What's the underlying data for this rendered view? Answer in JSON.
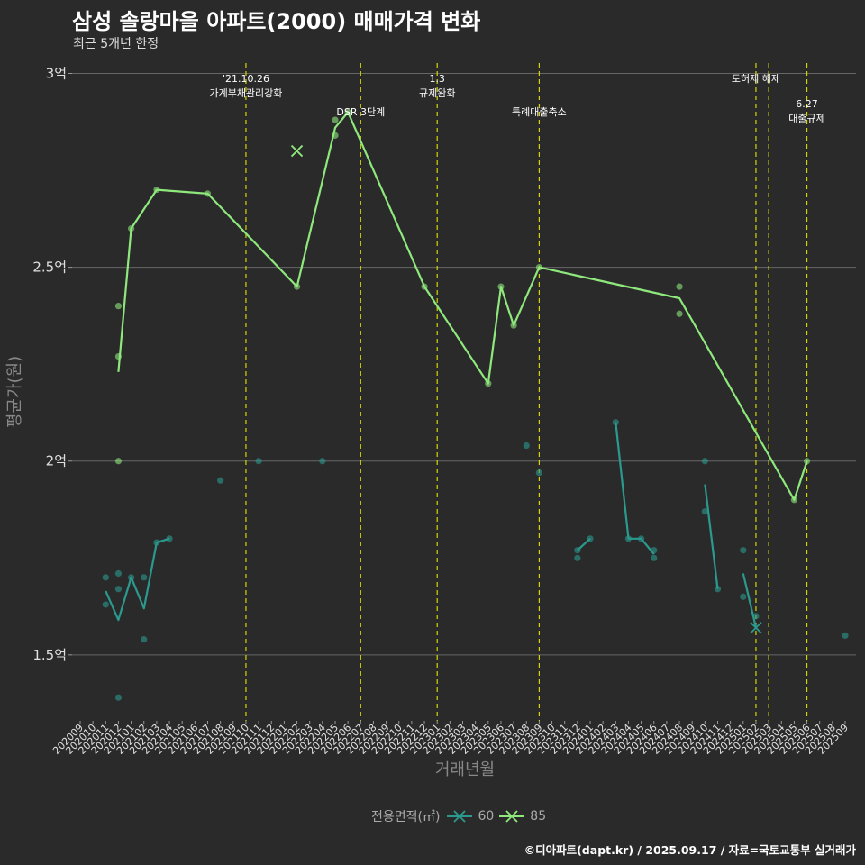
{
  "chart_data": {
    "type": "line",
    "title": "삼성 솔랑마을 아파트(2000) 매매가격 변화",
    "subtitle": "최근 5개년 한정",
    "xlabel": "거래년월",
    "ylabel": "평균가(원)",
    "caption": "©디아파트(dapt.kr) / 2025.09.17 / 자료=국토교통부 실거래가",
    "legend_title": "전용면적(㎡)",
    "legend_position": "bottom",
    "colors": {
      "60": "#2a9a8e",
      "85": "#8ee87c",
      "vline": "#d4d400",
      "grid": "#666666",
      "background": "#2b2a2b"
    },
    "ylim": [
      1.33,
      3.05
    ],
    "yticks": [
      {
        "value": 1.5,
        "label": "1.5억"
      },
      {
        "value": 2.0,
        "label": "2억"
      },
      {
        "value": 2.5,
        "label": "2.5억"
      },
      {
        "value": 3.0,
        "label": "3억"
      }
    ],
    "x_months": [
      "202009",
      "202010",
      "202011",
      "202012",
      "202101",
      "202102",
      "202103",
      "202104",
      "202105",
      "202106",
      "202107",
      "202108",
      "202109",
      "202110",
      "202111",
      "202112",
      "202201",
      "202202",
      "202203",
      "202204",
      "202205",
      "202206",
      "202207",
      "202208",
      "202209",
      "202210",
      "202211",
      "202212",
      "202301",
      "202302",
      "202303",
      "202304",
      "202305",
      "202306",
      "202307",
      "202308",
      "202309",
      "202310",
      "202311",
      "202312",
      "202401",
      "202402",
      "202403",
      "202404",
      "202405",
      "202406",
      "202407",
      "202408",
      "202409",
      "202410",
      "202411",
      "202412",
      "202501",
      "202502",
      "202503",
      "202504",
      "202505",
      "202506",
      "202507",
      "202508",
      "202509"
    ],
    "events": [
      {
        "x": "202110",
        "labels": [
          "'21.10.26",
          "가계부채관리강화"
        ],
        "level": 0
      },
      {
        "x": "202207",
        "labels": [
          "DSR 3단계"
        ],
        "level": 1
      },
      {
        "x": "202301",
        "labels": [
          "1.3",
          "규제완화"
        ],
        "level": 0
      },
      {
        "x": "202309",
        "labels": [
          "특례대출축소"
        ],
        "level": 1
      },
      {
        "x": "202502",
        "labels": [
          "토허제 해제"
        ],
        "level": 0
      },
      {
        "x": "202503",
        "labels": [],
        "level": 0
      },
      {
        "x": "202506",
        "labels": [
          "6.27",
          "대출규제"
        ],
        "level": 2
      }
    ],
    "series": [
      {
        "name": "60",
        "line_segments": [
          [
            [
              "202011",
              1.665
            ],
            [
              "202012",
              1.59
            ],
            [
              "202101",
              1.7
            ],
            [
              "202102",
              1.62
            ],
            [
              "202103",
              1.79
            ],
            [
              "202104",
              1.8
            ]
          ],
          [
            [
              "202312",
              1.77
            ],
            [
              "202401",
              1.8
            ]
          ],
          [
            [
              "202403",
              2.1
            ],
            [
              "202404",
              1.8
            ],
            [
              "202405",
              1.8
            ],
            [
              "202406",
              1.76
            ]
          ],
          [
            [
              "202410",
              1.94
            ],
            [
              "202411",
              1.67
            ]
          ],
          [
            [
              "202501",
              1.71
            ],
            [
              "202502",
              1.57
            ]
          ]
        ],
        "points": [
          [
            "202011",
            1.7
          ],
          [
            "202011",
            1.63
          ],
          [
            "202012",
            1.71
          ],
          [
            "202012",
            1.67
          ],
          [
            "202012",
            1.39
          ],
          [
            "202101",
            1.7
          ],
          [
            "202102",
            1.7
          ],
          [
            "202102",
            1.54
          ],
          [
            "202103",
            1.79
          ],
          [
            "202104",
            1.8
          ],
          [
            "202108",
            1.95
          ],
          [
            "202111",
            2.0
          ],
          [
            "202204",
            2.0
          ],
          [
            "202308",
            2.04
          ],
          [
            "202309",
            1.97
          ],
          [
            "202312",
            1.75
          ],
          [
            "202312",
            1.77
          ],
          [
            "202401",
            1.8
          ],
          [
            "202403",
            2.1
          ],
          [
            "202404",
            1.8
          ],
          [
            "202405",
            1.8
          ],
          [
            "202406",
            1.75
          ],
          [
            "202406",
            1.77
          ],
          [
            "202410",
            2.0
          ],
          [
            "202410",
            1.87
          ],
          [
            "202411",
            1.67
          ],
          [
            "202501",
            1.77
          ],
          [
            "202501",
            1.65
          ],
          [
            "202502",
            1.6
          ],
          [
            "202509",
            1.55
          ]
        ],
        "cancelled": [
          [
            "202502",
            1.57
          ]
        ]
      },
      {
        "name": "85",
        "line_segments": [
          [
            [
              "202012",
              2.23
            ],
            [
              "202101",
              2.6
            ],
            [
              "202103",
              2.7
            ],
            [
              "202107",
              2.69
            ],
            [
              "202202",
              2.45
            ],
            [
              "202205",
              2.86
            ],
            [
              "202206",
              2.9
            ],
            [
              "202212",
              2.45
            ],
            [
              "202305",
              2.2
            ],
            [
              "202306",
              2.45
            ],
            [
              "202307",
              2.35
            ],
            [
              "202309",
              2.5
            ],
            [
              "202408",
              2.42
            ],
            [
              "202505",
              1.9
            ],
            [
              "202506",
              2.0
            ]
          ]
        ],
        "points": [
          [
            "202012",
            2.4
          ],
          [
            "202012",
            2.27
          ],
          [
            "202012",
            2.0
          ],
          [
            "202101",
            2.6
          ],
          [
            "202103",
            2.7
          ],
          [
            "202107",
            2.69
          ],
          [
            "202202",
            2.45
          ],
          [
            "202205",
            2.88
          ],
          [
            "202205",
            2.84
          ],
          [
            "202206",
            2.9
          ],
          [
            "202212",
            2.45
          ],
          [
            "202305",
            2.2
          ],
          [
            "202306",
            2.45
          ],
          [
            "202307",
            2.35
          ],
          [
            "202309",
            2.5
          ],
          [
            "202408",
            2.45
          ],
          [
            "202408",
            2.38
          ],
          [
            "202505",
            1.9
          ],
          [
            "202506",
            2.0
          ]
        ],
        "cancelled": [
          [
            "202202",
            2.8
          ]
        ]
      }
    ]
  }
}
